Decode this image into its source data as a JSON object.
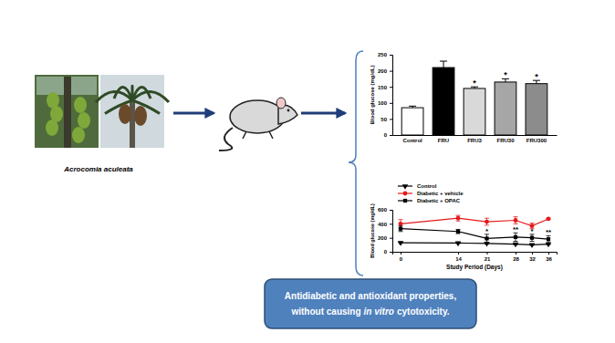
{
  "chart_data": [
    {
      "type": "bar",
      "categories": [
        "Control",
        "FRU",
        "FRU3",
        "FRU30",
        "FRU300"
      ],
      "values": [
        85,
        210,
        145,
        165,
        160
      ],
      "errors": [
        5,
        20,
        5,
        10,
        10
      ],
      "colors": [
        "#ffffff",
        "#000000",
        "#d9d9d9",
        "#a6a6a6",
        "#8c8c8c"
      ],
      "ylim": [
        0,
        250
      ],
      "yticks": [
        0,
        50,
        100,
        150,
        200,
        250
      ],
      "y_label": "Blood glucose (mg/dL)",
      "grid": false,
      "annotations": [
        {
          "category": "FRU3",
          "y": 153,
          "text": "*"
        },
        {
          "category": "FRU30",
          "y": 178,
          "text": "*"
        },
        {
          "category": "FRU300",
          "y": 173,
          "text": "*"
        }
      ]
    },
    {
      "type": "line",
      "x": [
        0,
        14,
        21,
        28,
        32,
        36
      ],
      "xlim": [
        -2,
        38
      ],
      "xticks": [
        0,
        14,
        21,
        28,
        32,
        36
      ],
      "ylim": [
        0,
        600
      ],
      "yticks": [
        0,
        200,
        400,
        600
      ],
      "x_label": "Study Period (Days)",
      "y_label": "Blood glucose (mg/dL)",
      "legend": "top-left",
      "grid": false,
      "series": [
        {
          "name": "Control",
          "color": "#000000",
          "marker": "triangle-down",
          "values": [
            130,
            125,
            120,
            110,
            100,
            110
          ],
          "errors": [
            10,
            8,
            8,
            8,
            8,
            8
          ]
        },
        {
          "name": "Diabetic + vehicle",
          "color": "#e31a1c",
          "marker": "circle",
          "values": [
            400,
            480,
            430,
            450,
            370,
            470
          ],
          "errors": [
            60,
            40,
            50,
            50,
            40,
            10
          ]
        },
        {
          "name": "Diabetic + OPAC",
          "color": "#000000",
          "marker": "square",
          "values": [
            330,
            290,
            190,
            210,
            200,
            180
          ],
          "errors": [
            40,
            30,
            60,
            60,
            50,
            50
          ]
        }
      ],
      "annotations": [
        {
          "x": 21,
          "y": 265,
          "text": "*"
        },
        {
          "x": 28,
          "y": 285,
          "text": "**"
        },
        {
          "x": 32,
          "y": 265,
          "text": "*"
        },
        {
          "x": 36,
          "y": 245,
          "text": "**"
        }
      ]
    }
  ],
  "diagram": {
    "species": "Acrocomia aculeata",
    "conclusion": {
      "line1": "Antidiabetic and antioxidant properties,",
      "line2": [
        "without causing",
        "in vitro",
        "cytotoxicity."
      ]
    }
  }
}
